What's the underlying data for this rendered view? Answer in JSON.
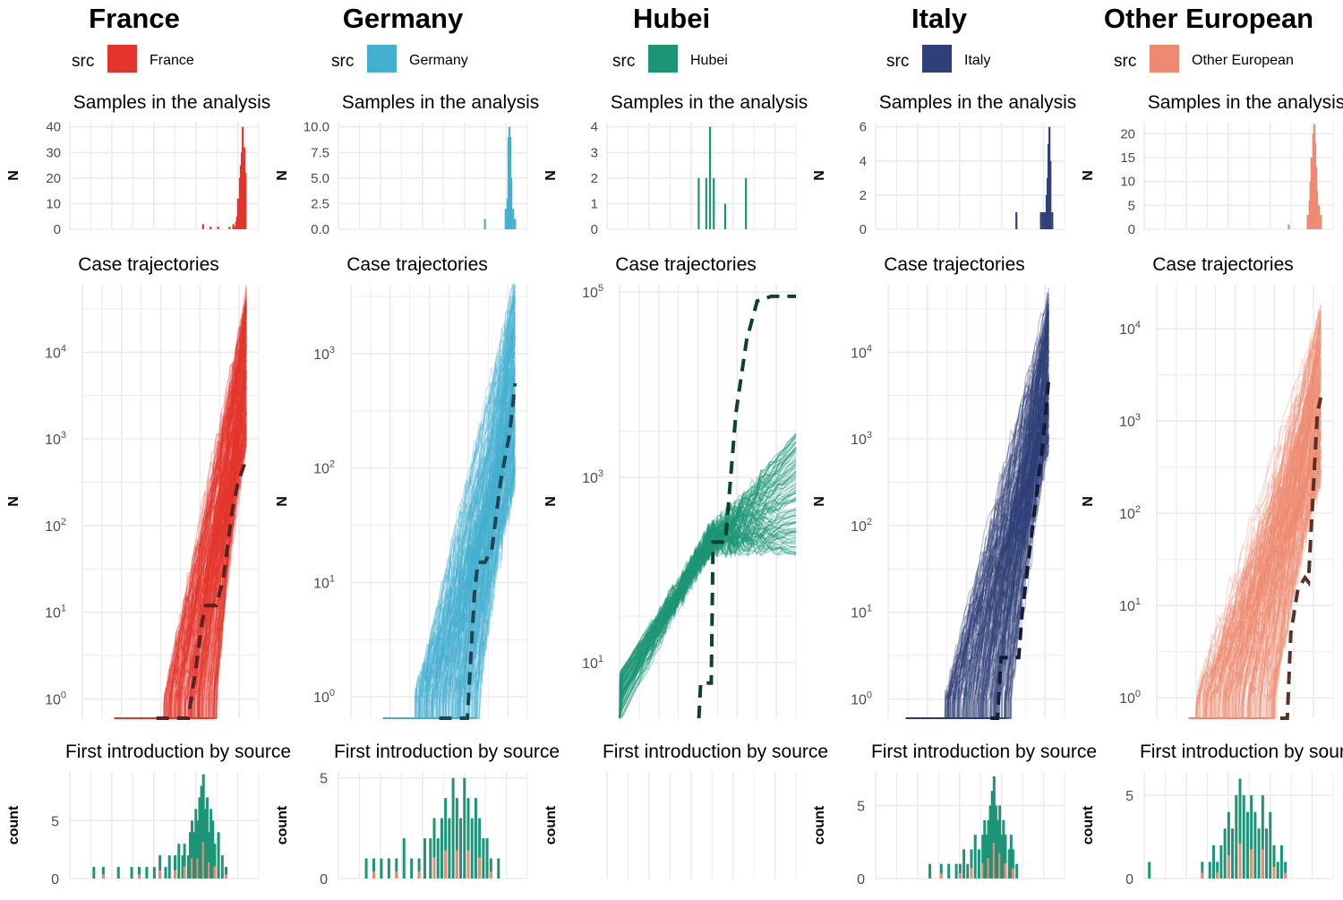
{
  "colors": {
    "France": "#e3352b",
    "Germany": "#44b0d0",
    "Hubei": "#1c9577",
    "Italy": "#2f3f77",
    "Other European": "#ef8a72",
    "grid": "#ebebeb",
    "axis_text": "#4d4d4d"
  },
  "legend_label": "src",
  "chart_data": [
    {
      "region": "France",
      "type": "facet-column",
      "legend_entry": "France",
      "samples": {
        "title": "Samples in the analysis",
        "ylabel": "N",
        "type": "bar",
        "ylim": [
          0,
          42
        ],
        "yticks": [
          0,
          10,
          20,
          30,
          40
        ],
        "bars": [
          [
            0.7,
            2
          ],
          [
            0.74,
            1
          ],
          [
            0.78,
            1
          ],
          [
            0.84,
            1
          ],
          [
            0.86,
            2
          ],
          [
            0.87,
            1
          ],
          [
            0.875,
            3
          ],
          [
            0.88,
            5
          ],
          [
            0.885,
            12
          ],
          [
            0.89,
            8
          ],
          [
            0.895,
            20
          ],
          [
            0.9,
            25
          ],
          [
            0.905,
            30
          ],
          [
            0.91,
            40
          ],
          [
            0.915,
            27
          ],
          [
            0.92,
            32
          ],
          [
            0.925,
            22
          ]
        ]
      },
      "trajectories": {
        "title": "Case trajectories",
        "ylabel": "N",
        "type": "line",
        "scale": "log10",
        "ylim": [
          0.6,
          60000
        ],
        "yticks": [
          "10^0",
          "10^1",
          "10^2",
          "10^3",
          "10^4"
        ],
        "ytick_values": [
          1,
          10,
          100,
          1000,
          10000
        ],
        "observed": [
          [
            0.42,
            0.6
          ],
          [
            0.6,
            0.6
          ],
          [
            0.64,
            2
          ],
          [
            0.68,
            8
          ],
          [
            0.7,
            12
          ],
          [
            0.76,
            12
          ],
          [
            0.8,
            25
          ],
          [
            0.85,
            150
          ],
          [
            0.88,
            300
          ],
          [
            0.93,
            600
          ]
        ],
        "start": 0.18,
        "first_case": 0.46,
        "end": 0.93,
        "end_value": 10000,
        "n_lines": 200
      },
      "intro": {
        "title": "First introduction by source",
        "ylabel": "count",
        "type": "bar",
        "ylim": [
          0,
          9.2
        ],
        "yticks": [
          0,
          5
        ],
        "bars": [
          [
            0.12,
            1
          ],
          [
            0.17,
            1
          ],
          [
            0.25,
            1
          ],
          [
            0.32,
            1
          ],
          [
            0.36,
            1
          ],
          [
            0.4,
            1
          ],
          [
            0.44,
            1
          ],
          [
            0.47,
            2
          ],
          [
            0.5,
            1
          ],
          [
            0.52,
            2
          ],
          [
            0.55,
            2
          ],
          [
            0.57,
            3
          ],
          [
            0.59,
            2
          ],
          [
            0.6,
            3
          ],
          [
            0.62,
            2
          ],
          [
            0.63,
            4
          ],
          [
            0.64,
            5
          ],
          [
            0.65,
            4
          ],
          [
            0.66,
            6
          ],
          [
            0.67,
            5
          ],
          [
            0.68,
            7
          ],
          [
            0.69,
            8
          ],
          [
            0.7,
            9
          ],
          [
            0.71,
            6
          ],
          [
            0.72,
            7
          ],
          [
            0.73,
            4
          ],
          [
            0.74,
            6
          ],
          [
            0.75,
            5
          ],
          [
            0.76,
            3
          ],
          [
            0.78,
            4
          ],
          [
            0.8,
            2
          ],
          [
            0.82,
            1
          ]
        ]
      }
    },
    {
      "region": "Germany",
      "type": "facet-column",
      "legend_entry": "Germany",
      "samples": {
        "title": "Samples in the analysis",
        "ylabel": "N",
        "type": "bar",
        "ylim": [
          0,
          10.5
        ],
        "yticks": [
          0.0,
          2.5,
          5.0,
          7.5,
          10.0
        ],
        "bars": [
          [
            0.77,
            1
          ],
          [
            0.88,
            2
          ],
          [
            0.89,
            3
          ],
          [
            0.895,
            9
          ],
          [
            0.9,
            10
          ],
          [
            0.905,
            9
          ],
          [
            0.91,
            5
          ],
          [
            0.92,
            2
          ],
          [
            0.93,
            1
          ]
        ]
      },
      "trajectories": {
        "title": "Case trajectories",
        "ylabel": "N",
        "type": "line",
        "scale": "log10",
        "ylim": [
          0.65,
          4000
        ],
        "yticks": [
          "10^0",
          "10^1",
          "10^2",
          "10^3"
        ],
        "ytick_values": [
          1,
          10,
          100,
          1000
        ],
        "observed": [
          [
            0.5,
            0.65
          ],
          [
            0.6,
            0.65
          ],
          [
            0.66,
            0.65
          ],
          [
            0.7,
            8
          ],
          [
            0.72,
            15
          ],
          [
            0.76,
            15
          ],
          [
            0.8,
            20
          ],
          [
            0.85,
            80
          ],
          [
            0.9,
            200
          ],
          [
            0.93,
            550
          ]
        ],
        "start": 0.18,
        "first_case": 0.36,
        "end": 0.93,
        "end_value": 900,
        "n_lines": 200
      },
      "intro": {
        "title": "First introduction by source",
        "ylabel": "count",
        "type": "bar",
        "ylim": [
          0,
          5.3
        ],
        "yticks": [
          0,
          5
        ],
        "bars": [
          [
            0.14,
            1
          ],
          [
            0.18,
            1
          ],
          [
            0.22,
            1
          ],
          [
            0.26,
            1
          ],
          [
            0.3,
            1
          ],
          [
            0.34,
            2
          ],
          [
            0.38,
            1
          ],
          [
            0.42,
            1
          ],
          [
            0.45,
            2
          ],
          [
            0.48,
            2
          ],
          [
            0.5,
            3
          ],
          [
            0.52,
            2
          ],
          [
            0.54,
            3
          ],
          [
            0.56,
            4
          ],
          [
            0.58,
            3
          ],
          [
            0.6,
            5
          ],
          [
            0.62,
            4
          ],
          [
            0.64,
            3
          ],
          [
            0.66,
            5
          ],
          [
            0.68,
            4
          ],
          [
            0.7,
            3
          ],
          [
            0.72,
            4
          ],
          [
            0.74,
            3
          ],
          [
            0.76,
            2
          ],
          [
            0.78,
            2
          ],
          [
            0.8,
            1
          ],
          [
            0.84,
            1
          ]
        ]
      }
    },
    {
      "region": "Hubei",
      "type": "facet-column",
      "legend_entry": "Hubei",
      "samples": {
        "title": "Samples in the analysis",
        "ylabel": "N",
        "type": "bar",
        "ylim": [
          0,
          4.2
        ],
        "yticks": [
          0,
          1,
          2,
          3,
          4
        ],
        "bars": [
          [
            0.48,
            2
          ],
          [
            0.52,
            2
          ],
          [
            0.54,
            4
          ],
          [
            0.56,
            2
          ],
          [
            0.62,
            1
          ],
          [
            0.73,
            2
          ]
        ]
      },
      "trajectories": {
        "title": "Case trajectories",
        "ylabel": "N",
        "type": "line",
        "scale": "log10",
        "ylim": [
          2.5,
          120000
        ],
        "yticks": [
          "10^1",
          "10^3",
          "10^5"
        ],
        "ytick_values": [
          10,
          1000,
          100000
        ],
        "observed": [
          [
            0.45,
            2.5
          ],
          [
            0.46,
            6
          ],
          [
            0.52,
            6
          ],
          [
            0.53,
            200
          ],
          [
            0.6,
            200
          ],
          [
            0.66,
            5000
          ],
          [
            0.72,
            30000
          ],
          [
            0.78,
            80000
          ],
          [
            0.86,
            90000
          ],
          [
            1.0,
            90000
          ]
        ],
        "start": 0.0,
        "first_case": 0.0,
        "end": 1.0,
        "end_value": 900,
        "n_lines": 100
      },
      "intro": {
        "title": "First introduction by source",
        "ylabel": "count",
        "type": "bar",
        "ylim": [
          0,
          5
        ],
        "yticks": [],
        "bars": []
      }
    },
    {
      "region": "Italy",
      "type": "facet-column",
      "legend_entry": "Italy",
      "samples": {
        "title": "Samples in the analysis",
        "ylabel": "N",
        "type": "bar",
        "ylim": [
          0,
          6.3
        ],
        "yticks": [
          0,
          2,
          4,
          6
        ],
        "bars": [
          [
            0.74,
            1
          ],
          [
            0.87,
            1
          ],
          [
            0.88,
            1
          ],
          [
            0.89,
            1
          ],
          [
            0.9,
            2
          ],
          [
            0.905,
            3
          ],
          [
            0.91,
            5
          ],
          [
            0.915,
            6
          ],
          [
            0.92,
            4
          ],
          [
            0.93,
            1
          ]
        ]
      },
      "trajectories": {
        "title": "Case trajectories",
        "ylabel": "N",
        "type": "line",
        "scale": "log10",
        "ylim": [
          0.6,
          60000
        ],
        "yticks": [
          "10^0",
          "10^1",
          "10^2",
          "10^3",
          "10^4"
        ],
        "ytick_values": [
          1,
          10,
          100,
          1000,
          10000
        ],
        "observed": [
          [
            0.58,
            0.6
          ],
          [
            0.62,
            0.6
          ],
          [
            0.64,
            3
          ],
          [
            0.74,
            3
          ],
          [
            0.76,
            10
          ],
          [
            0.82,
            100
          ],
          [
            0.88,
            1000
          ],
          [
            0.91,
            5000
          ]
        ],
        "start": 0.1,
        "first_case": 0.32,
        "end": 0.91,
        "end_value": 10000,
        "n_lines": 200
      },
      "intro": {
        "title": "First introduction by source",
        "ylabel": "count",
        "type": "bar",
        "ylim": [
          0,
          7.3
        ],
        "yticks": [
          0,
          5
        ],
        "bars": [
          [
            0.28,
            1
          ],
          [
            0.34,
            1
          ],
          [
            0.38,
            1
          ],
          [
            0.42,
            1
          ],
          [
            0.44,
            1
          ],
          [
            0.46,
            2
          ],
          [
            0.48,
            1
          ],
          [
            0.5,
            2
          ],
          [
            0.52,
            3
          ],
          [
            0.54,
            2
          ],
          [
            0.56,
            3
          ],
          [
            0.57,
            4
          ],
          [
            0.58,
            3
          ],
          [
            0.59,
            4
          ],
          [
            0.6,
            5
          ],
          [
            0.61,
            6
          ],
          [
            0.62,
            7
          ],
          [
            0.63,
            5
          ],
          [
            0.64,
            4
          ],
          [
            0.65,
            5
          ],
          [
            0.66,
            3
          ],
          [
            0.67,
            4
          ],
          [
            0.68,
            3
          ],
          [
            0.7,
            2
          ],
          [
            0.71,
            3
          ],
          [
            0.72,
            2
          ],
          [
            0.74,
            1
          ]
        ]
      }
    },
    {
      "region": "Other European",
      "type": "facet-column",
      "legend_entry": "Other European",
      "samples": {
        "title": "Samples in the analysis",
        "ylabel": "N",
        "type": "bar",
        "ylim": [
          0,
          22.5
        ],
        "yticks": [
          0,
          5,
          10,
          15,
          20
        ],
        "bars": [
          [
            0.76,
            1
          ],
          [
            0.86,
            3
          ],
          [
            0.87,
            6
          ],
          [
            0.875,
            10
          ],
          [
            0.88,
            15
          ],
          [
            0.885,
            12
          ],
          [
            0.89,
            20
          ],
          [
            0.895,
            22
          ],
          [
            0.9,
            18
          ],
          [
            0.905,
            13
          ],
          [
            0.91,
            8
          ],
          [
            0.92,
            5
          ],
          [
            0.93,
            3
          ]
        ]
      },
      "trajectories": {
        "title": "Case trajectories",
        "ylabel": "N",
        "type": "line",
        "scale": "log10",
        "ylim": [
          0.6,
          30000
        ],
        "yticks": [
          "10^0",
          "10^1",
          "10^2",
          "10^3",
          "10^4"
        ],
        "ytick_values": [
          1,
          10,
          100,
          1000,
          10000
        ],
        "observed": [
          [
            0.7,
            0.6
          ],
          [
            0.74,
            0.6
          ],
          [
            0.76,
            5
          ],
          [
            0.8,
            15
          ],
          [
            0.84,
            20
          ],
          [
            0.86,
            18
          ],
          [
            0.88,
            100
          ],
          [
            0.91,
            1200
          ],
          [
            0.93,
            1800
          ]
        ],
        "start": 0.18,
        "first_case": 0.22,
        "end": 0.93,
        "end_value": 3000,
        "n_lines": 200
      },
      "intro": {
        "title": "First introduction by source",
        "ylabel": "count",
        "type": "bar",
        "ylim": [
          0,
          6.4
        ],
        "yticks": [
          0,
          5
        ],
        "bars": [
          [
            0.02,
            1
          ],
          [
            0.3,
            1
          ],
          [
            0.34,
            1
          ],
          [
            0.36,
            2
          ],
          [
            0.38,
            1
          ],
          [
            0.4,
            2
          ],
          [
            0.42,
            3
          ],
          [
            0.44,
            4
          ],
          [
            0.46,
            3
          ],
          [
            0.48,
            5
          ],
          [
            0.5,
            6
          ],
          [
            0.52,
            5
          ],
          [
            0.54,
            4
          ],
          [
            0.56,
            5
          ],
          [
            0.58,
            4
          ],
          [
            0.6,
            3
          ],
          [
            0.62,
            5
          ],
          [
            0.64,
            3
          ],
          [
            0.66,
            4
          ],
          [
            0.68,
            2
          ],
          [
            0.7,
            1
          ],
          [
            0.72,
            2
          ],
          [
            0.74,
            1
          ]
        ]
      }
    }
  ]
}
